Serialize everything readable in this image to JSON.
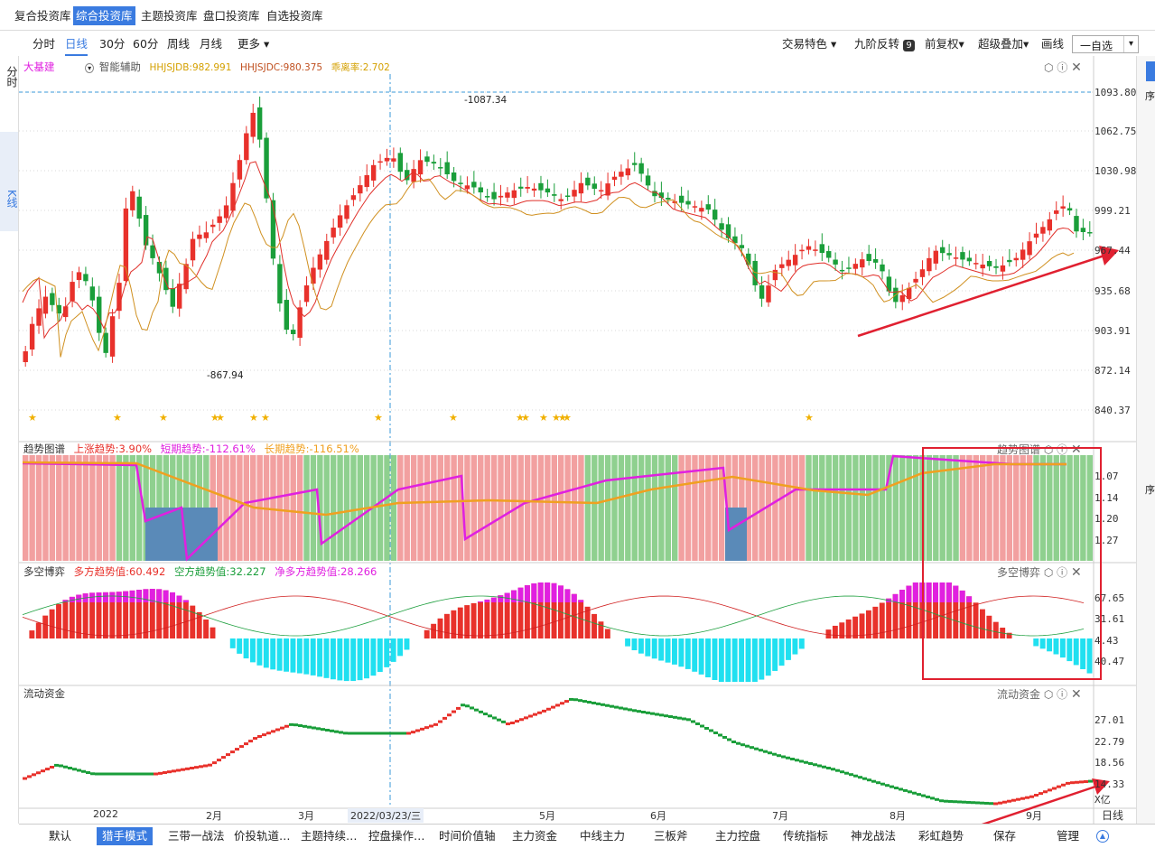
{
  "top_tabs": [
    "复合投资库",
    "综合投资库",
    "主题投资库",
    "盘口投资库",
    "自选投资库"
  ],
  "active_top_tab": 1,
  "periods": [
    "分时",
    "日线",
    "30分",
    "60分",
    "周线",
    "月线",
    "更多"
  ],
  "right_tools": [
    "交易特色",
    "九阶反转",
    "前复权",
    "超级叠加",
    "画线"
  ],
  "nine_badge": "9",
  "search_placeholder": "一自选",
  "left_tabs": [
    "分时",
    "K线"
  ],
  "stock": {
    "name": "大基建",
    "assist": "智能辅助",
    "l1": "HHJSJDB:982.991",
    "l2": "HHJSJDC:980.375",
    "l3": "乖离率:2.702"
  },
  "price_axis": [
    "1093.80",
    "1062.75",
    "1030.98",
    "999.21",
    "967.44",
    "935.68",
    "903.91",
    "872.14",
    "840.37"
  ],
  "high_label": "1087.34",
  "low_label": "867.94",
  "trend": {
    "title": "趋势图谱",
    "l1": "上涨趋势:3.90%",
    "l2": "短期趋势:-112.61%",
    "l3": "长期趋势:-116.51%",
    "axis": [
      "1.07",
      "1.14",
      "1.20",
      "1.27"
    ]
  },
  "duokong": {
    "title": "多空博弈",
    "l1": "多方趋势值:60.492",
    "l2": "空方趋势值:32.227",
    "l3": "净多方趋势值:28.266",
    "axis": [
      "67.65",
      "31.61",
      "4.43",
      "40.47"
    ]
  },
  "liudong": {
    "title": "流动资金",
    "axis": [
      "27.01",
      "22.79",
      "18.56",
      "14.33"
    ],
    "unit": "X亿"
  },
  "months": [
    "2022",
    "2月",
    "3月",
    "2022/03/23/三",
    "5月",
    "6月",
    "7月",
    "8月",
    "9月"
  ],
  "period_right": "日线",
  "bottom_tabs": [
    "默认",
    "猎手模式",
    "三带一战法",
    "价投轨道…",
    "主题持续…",
    "控盘操作…",
    "时间价值轴",
    "主力资金",
    "中线主力",
    "三板斧",
    "主力控盘",
    "传统指标",
    "神龙战法",
    "彩虹趋势",
    "保存",
    "管理"
  ],
  "active_bottom_tab": 1,
  "right_side_chars": [
    "序",
    "序"
  ],
  "colors": {
    "up": "#e8312b",
    "down": "#1a9e3a",
    "accent": "#3a7be0",
    "magenta": "#e020e0",
    "orange": "#f0a020",
    "cyan": "#20e0f0",
    "arrow": "#e02030"
  }
}
